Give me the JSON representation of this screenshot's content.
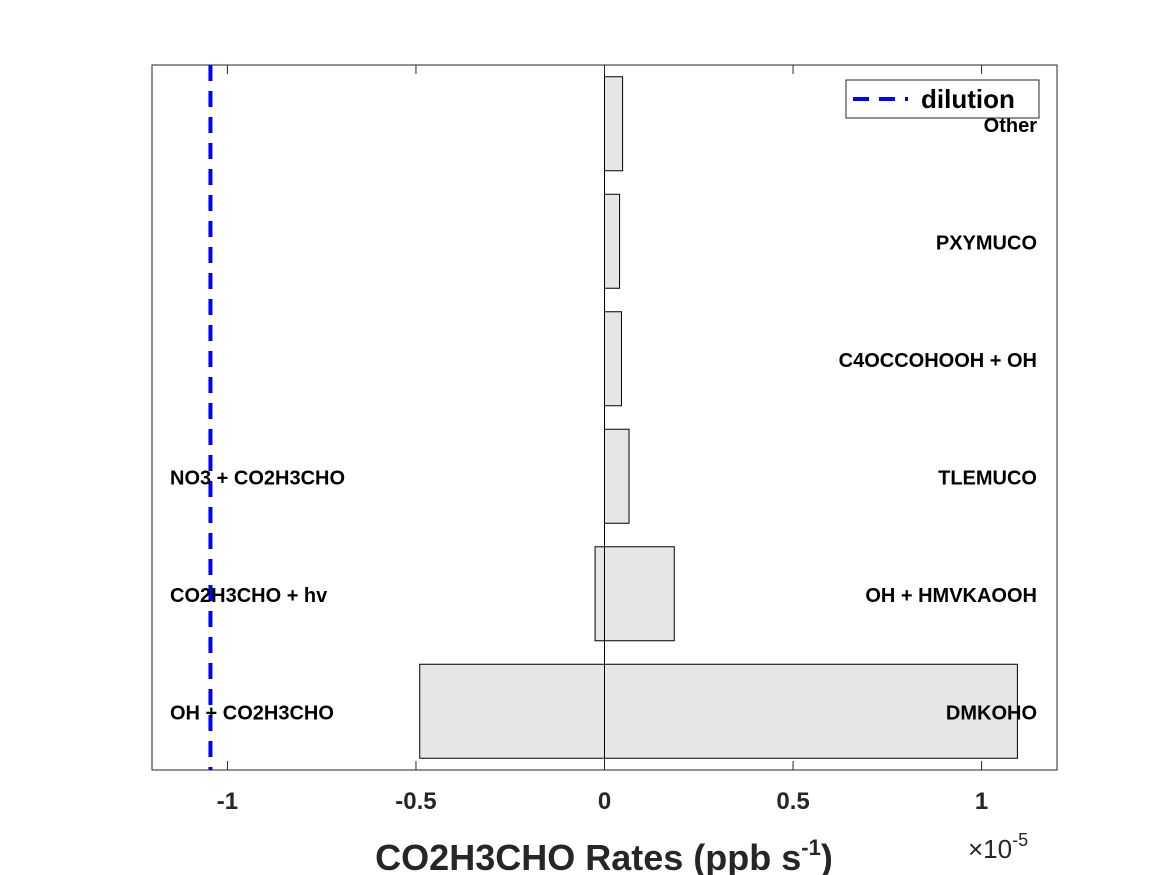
{
  "chart_data": {
    "type": "bar",
    "orientation": "horizontal-diverging",
    "xlabel": "CO2H3CHO Rates (ppb s",
    "xlabel_sup": "-1",
    "xlabel_close": ")",
    "x_multiplier_base": "×10",
    "x_multiplier_exp": "-5",
    "xlim": [
      -1.2,
      1.2
    ],
    "xticks": [
      -1,
      -0.5,
      0,
      0.5,
      1
    ],
    "xtick_labels": [
      "-1",
      "-0.5",
      "0",
      "0.5",
      "1"
    ],
    "rows": [
      {
        "neg_label": "OH + CO2H3CHO",
        "neg_value": -0.49,
        "pos_label": "DMKOHO",
        "pos_value": 1.095
      },
      {
        "neg_label": "CO2H3CHO + hv",
        "neg_value": -0.025,
        "pos_label": "OH + HMVKAOOH",
        "pos_value": 0.185
      },
      {
        "neg_label": "NO3 + CO2H3CHO",
        "neg_value": 0,
        "pos_label": "TLEMUCO",
        "pos_value": 0.065
      },
      {
        "neg_label": "",
        "neg_value": 0,
        "pos_label": "C4OCCOHOOH + OH",
        "pos_value": 0.045
      },
      {
        "neg_label": "",
        "neg_value": 0,
        "pos_label": "PXYMUCO",
        "pos_value": 0.04
      },
      {
        "neg_label": "",
        "neg_value": 0,
        "pos_label": "Other",
        "pos_value": 0.048
      }
    ],
    "dilution": {
      "label": "dilution",
      "value": -1.045,
      "color": "#0000ff"
    },
    "legend_position": "top-right",
    "bar_color": "#e6e6e6",
    "grid": false
  }
}
